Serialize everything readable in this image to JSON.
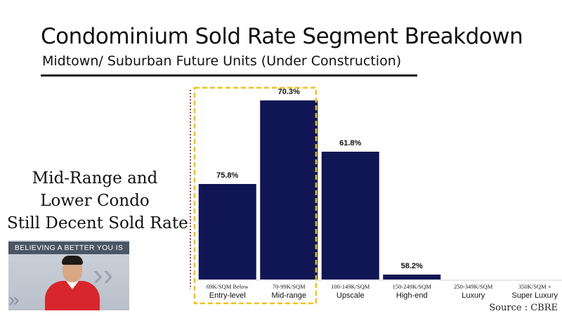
{
  "slide": {
    "title": "Condominium Sold Rate Segment Breakdown",
    "subtitle": "Midtown/ Suburban Future Units (Under Construction)",
    "callout_lines": [
      "Mid-Range and",
      "Lower Condo",
      "Still Decent Sold Rate"
    ],
    "source": "Source : CBRE"
  },
  "video": {
    "banner": "BELIEVING A BETTER YOU IS"
  },
  "colors": {
    "bar": "#101654",
    "highlight_box": "#f2c018",
    "axis_dotted": "#7a1a1a"
  },
  "chart_data": {
    "type": "bar",
    "categories": [
      {
        "price": "69K/SQM Below",
        "segment": "Entry-level"
      },
      {
        "price": "70-99K/SQM",
        "segment": "Mid-range"
      },
      {
        "price": "100-149K/SQM",
        "segment": "Upscale"
      },
      {
        "price": "150-249K/SQM",
        "segment": "High-end"
      },
      {
        "price": "250-349K/SQM",
        "segment": "Luxury"
      },
      {
        "price": "350K/SQM +",
        "segment": "Super Luxury"
      }
    ],
    "values": [
      75.8,
      70.3,
      61.8,
      58.2,
      null,
      null
    ],
    "value_labels": [
      "75.8%",
      "70.3%",
      "61.8%",
      "58.2%",
      "",
      ""
    ],
    "highlighted_categories": [
      "Entry-level",
      "Mid-range"
    ],
    "title": "",
    "xlabel": "",
    "ylabel": ""
  }
}
